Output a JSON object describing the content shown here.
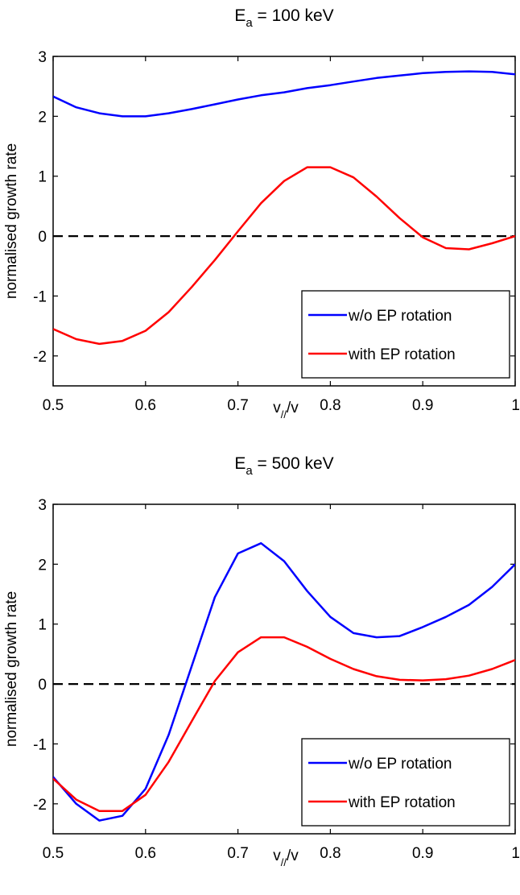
{
  "chart_data": [
    {
      "type": "line",
      "title": "E",
      "title_sub": "a",
      "title_rest": " = 100 keV",
      "xlabel": "v",
      "xlabel_sub": "//",
      "xlabel_rest": "/v",
      "ylabel": "normalised growth rate",
      "xlim": [
        0.5,
        1
      ],
      "ylim": [
        -2.5,
        3
      ],
      "xticks": [
        "0.5",
        "0.6",
        "0.7",
        "0.8",
        "0.9",
        "1"
      ],
      "yticks": [
        "-2",
        "-1",
        "0",
        "1",
        "2",
        "3"
      ],
      "grid": false,
      "legend_position": "bottom-right",
      "reference_line": {
        "y": 0,
        "style": "dashed",
        "color": "#000000"
      },
      "series": [
        {
          "name": "w/o EP rotation",
          "color": "#0000ff",
          "x": [
            0.5,
            0.525,
            0.55,
            0.575,
            0.6,
            0.625,
            0.65,
            0.675,
            0.7,
            0.725,
            0.75,
            0.775,
            0.8,
            0.825,
            0.85,
            0.875,
            0.9,
            0.925,
            0.95,
            0.975,
            1.0
          ],
          "y": [
            2.33,
            2.15,
            2.05,
            2.0,
            2.0,
            2.05,
            2.12,
            2.2,
            2.28,
            2.35,
            2.4,
            2.47,
            2.52,
            2.58,
            2.64,
            2.68,
            2.72,
            2.74,
            2.75,
            2.74,
            2.7
          ]
        },
        {
          "name": "with EP rotation",
          "color": "#ff0000",
          "x": [
            0.5,
            0.525,
            0.55,
            0.575,
            0.6,
            0.625,
            0.65,
            0.675,
            0.7,
            0.725,
            0.75,
            0.775,
            0.8,
            0.825,
            0.85,
            0.875,
            0.9,
            0.925,
            0.95,
            0.975,
            1.0
          ],
          "y": [
            -1.55,
            -1.72,
            -1.8,
            -1.75,
            -1.58,
            -1.27,
            -0.85,
            -0.4,
            0.08,
            0.55,
            0.92,
            1.15,
            1.15,
            0.98,
            0.66,
            0.3,
            -0.02,
            -0.2,
            -0.22,
            -0.12,
            0.0
          ]
        }
      ]
    },
    {
      "type": "line",
      "title": "E",
      "title_sub": "a",
      "title_rest": " = 500 keV",
      "xlabel": "v",
      "xlabel_sub": "//",
      "xlabel_rest": "/v",
      "ylabel": "normalised growth rate",
      "xlim": [
        0.5,
        1
      ],
      "ylim": [
        -2.5,
        3
      ],
      "xticks": [
        "0.5",
        "0.6",
        "0.7",
        "0.8",
        "0.9",
        "1"
      ],
      "yticks": [
        "-2",
        "-1",
        "0",
        "1",
        "2",
        "3"
      ],
      "grid": false,
      "legend_position": "bottom-right",
      "reference_line": {
        "y": 0,
        "style": "dashed",
        "color": "#000000"
      },
      "series": [
        {
          "name": "w/o EP rotation",
          "color": "#0000ff",
          "x": [
            0.5,
            0.525,
            0.55,
            0.575,
            0.6,
            0.625,
            0.65,
            0.675,
            0.7,
            0.725,
            0.75,
            0.775,
            0.8,
            0.825,
            0.85,
            0.875,
            0.9,
            0.925,
            0.95,
            0.975,
            1.0
          ],
          "y": [
            -1.55,
            -2.0,
            -2.28,
            -2.2,
            -1.75,
            -0.85,
            0.3,
            1.45,
            2.18,
            2.35,
            2.05,
            1.55,
            1.12,
            0.85,
            0.78,
            0.8,
            0.95,
            1.12,
            1.32,
            1.62,
            2.0
          ]
        },
        {
          "name": "with EP rotation",
          "color": "#ff0000",
          "x": [
            0.5,
            0.525,
            0.55,
            0.575,
            0.6,
            0.625,
            0.65,
            0.675,
            0.7,
            0.725,
            0.75,
            0.775,
            0.8,
            0.825,
            0.85,
            0.875,
            0.9,
            0.925,
            0.95,
            0.975,
            1.0
          ],
          "y": [
            -1.58,
            -1.93,
            -2.12,
            -2.12,
            -1.85,
            -1.3,
            -0.62,
            0.05,
            0.53,
            0.78,
            0.78,
            0.62,
            0.42,
            0.25,
            0.13,
            0.07,
            0.06,
            0.08,
            0.14,
            0.25,
            0.4
          ]
        }
      ]
    }
  ]
}
